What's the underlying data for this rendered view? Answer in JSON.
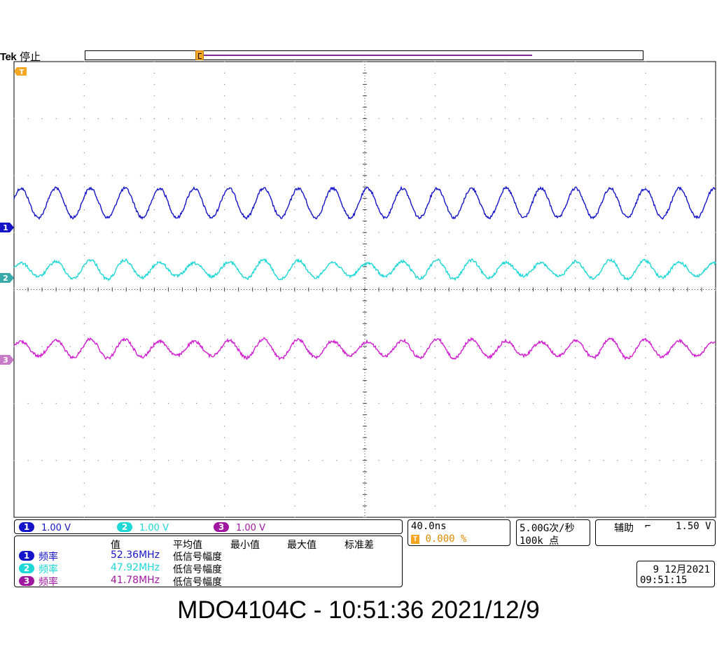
{
  "header": {
    "brand": "Tek",
    "status": "停止"
  },
  "colors": {
    "ch1": "#1414c8",
    "ch2": "#1ed7d7",
    "ch3": "#d21ed2",
    "trigger": "#f5a623",
    "grid": "#888888",
    "record": "#7a2a9a"
  },
  "markers": {
    "trigger_top": "T",
    "ch1": "1",
    "ch2": "2",
    "ch3": "3"
  },
  "channels": [
    {
      "num": "1",
      "scale": "1.00 V"
    },
    {
      "num": "2",
      "scale": "1.00 V"
    },
    {
      "num": "3",
      "scale": "1.00 V"
    }
  ],
  "timebase": {
    "scale": "40.0ns",
    "trigger_pos_icon": "T",
    "trigger_pos": "0.000 %"
  },
  "acquisition": {
    "rate": "5.00G次/秒",
    "points": "100k 点"
  },
  "trigger": {
    "source": "辅助",
    "slope_icon": "falling-edge-icon",
    "slope_glyph": "⌐",
    "level": "1.50 V"
  },
  "measurements": {
    "headers": [
      "值",
      "平均值",
      "最小值",
      "最大值",
      "标准差"
    ],
    "rows": [
      {
        "ch": "1",
        "name": "频率",
        "value": "52.36MHz",
        "note": "低信号幅度"
      },
      {
        "ch": "2",
        "name": "频率",
        "value": "47.92MHz",
        "note": "低信号幅度"
      },
      {
        "ch": "3",
        "name": "频率",
        "value": "41.78MHz",
        "note": "低信号幅度"
      }
    ]
  },
  "datetime": {
    "date": "9 12月2021",
    "time": "09:51:15"
  },
  "footer": "MDO4104C - 10:51:36   2021/12/9"
}
